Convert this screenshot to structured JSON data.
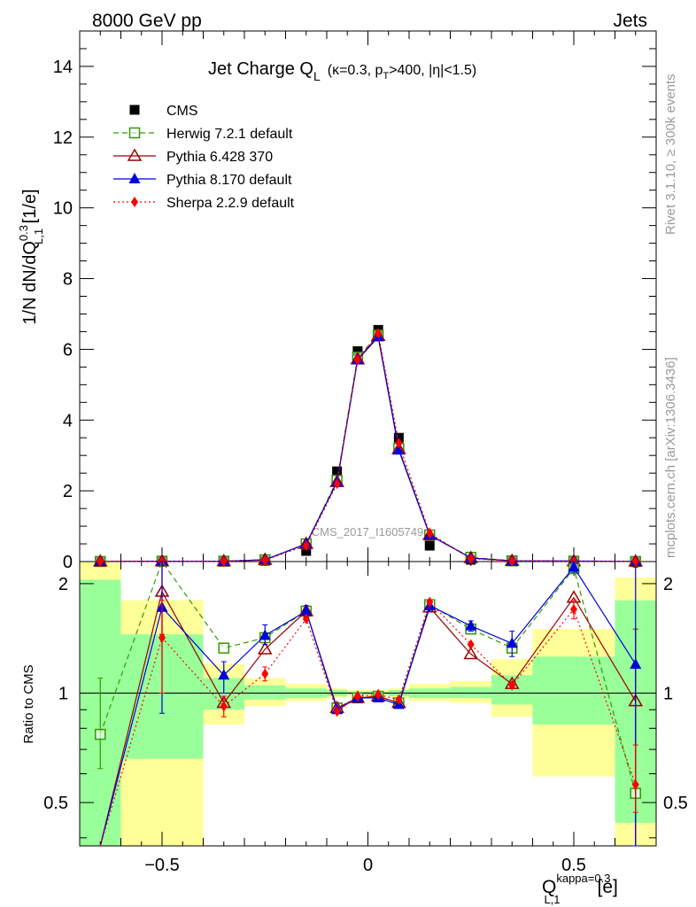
{
  "header": {
    "left": "8000 GeV pp",
    "right": "Jets"
  },
  "side_labels": {
    "rivet": "Rivet 3.1.10, ≥ 300k events",
    "mcplots": "mcplots.cern.ch [arXiv:1306.3436]"
  },
  "watermark": "CMS_2017_I1605749",
  "chart_data": {
    "type": "scatter",
    "title": {
      "main": "Jet Charge Q",
      "sub": "L",
      "cut1": "(κ=0.3, p",
      "cut_sub": "T",
      "cut2": ">400, |η|<1.5)"
    },
    "ylabel_main": {
      "pre": "1/N dN/dQ",
      "sup": "0.3",
      "sub": "L,1",
      "unit": " [1/e]"
    },
    "ylabel_ratio": "Ratio to CMS",
    "xlabel": {
      "main": "Q",
      "sup": "kappa=0.3",
      "sub": "L,1",
      "unit": "[e]"
    },
    "xlim": [
      -0.7,
      0.7
    ],
    "ylim_main": [
      0,
      15
    ],
    "ylim_ratio": [
      0.38,
      2.3
    ],
    "x_ticks": [
      {
        "v": -0.5,
        "label": "−0.5"
      },
      {
        "v": 0,
        "label": "0"
      },
      {
        "v": 0.5,
        "label": "0.5"
      }
    ],
    "y_ticks_main": [
      {
        "v": 0,
        "label": "0"
      },
      {
        "v": 2,
        "label": "2"
      },
      {
        "v": 4,
        "label": "4"
      },
      {
        "v": 6,
        "label": "6"
      },
      {
        "v": 8,
        "label": "8"
      },
      {
        "v": 10,
        "label": "10"
      },
      {
        "v": 12,
        "label": "12"
      },
      {
        "v": 14,
        "label": "14"
      }
    ],
    "y_ticks_ratio": [
      {
        "v": 0.5,
        "label": "0.5"
      },
      {
        "v": 1,
        "label": "1"
      },
      {
        "v": 2,
        "label": "2"
      }
    ],
    "x": [
      -0.65,
      -0.5,
      -0.35,
      -0.25,
      -0.15,
      -0.075,
      -0.025,
      0.025,
      0.075,
      0.15,
      0.25,
      0.35,
      0.5,
      0.65
    ],
    "bands": [
      {
        "x0": -0.7,
        "x1": -0.6,
        "y2lo": 0.38,
        "y2hi": 2.3,
        "y1lo": 0.38,
        "y1hi": 2.05
      },
      {
        "x0": -0.6,
        "x1": -0.4,
        "y2lo": 0.38,
        "y2hi": 1.8,
        "y1lo": 0.66,
        "y1hi": 1.45
      },
      {
        "x0": -0.4,
        "x1": -0.3,
        "y2lo": 0.82,
        "y2hi": 1.2,
        "y1lo": 0.9,
        "y1hi": 1.1
      },
      {
        "x0": -0.3,
        "x1": -0.2,
        "y2lo": 0.92,
        "y2hi": 1.1,
        "y1lo": 0.96,
        "y1hi": 1.05
      },
      {
        "x0": -0.2,
        "x1": -0.1,
        "y2lo": 0.95,
        "y2hi": 1.06,
        "y1lo": 0.97,
        "y1hi": 1.03
      },
      {
        "x0": -0.1,
        "x1": -0.05,
        "y2lo": 0.97,
        "y2hi": 1.03,
        "y1lo": 0.98,
        "y1hi": 1.02
      },
      {
        "x0": -0.05,
        "x1": 0.0,
        "y2lo": 0.98,
        "y2hi": 1.02,
        "y1lo": 0.99,
        "y1hi": 1.01
      },
      {
        "x0": 0.0,
        "x1": 0.05,
        "y2lo": 0.98,
        "y2hi": 1.02,
        "y1lo": 0.99,
        "y1hi": 1.01
      },
      {
        "x0": 0.05,
        "x1": 0.1,
        "y2lo": 0.97,
        "y2hi": 1.03,
        "y1lo": 0.98,
        "y1hi": 1.02
      },
      {
        "x0": 0.1,
        "x1": 0.2,
        "y2lo": 0.95,
        "y2hi": 1.06,
        "y1lo": 0.97,
        "y1hi": 1.03
      },
      {
        "x0": 0.2,
        "x1": 0.3,
        "y2lo": 0.94,
        "y2hi": 1.08,
        "y1lo": 0.97,
        "y1hi": 1.04
      },
      {
        "x0": 0.3,
        "x1": 0.4,
        "y2lo": 0.86,
        "y2hi": 1.24,
        "y1lo": 0.93,
        "y1hi": 1.12
      },
      {
        "x0": 0.4,
        "x1": 0.6,
        "y2lo": 0.59,
        "y2hi": 1.5,
        "y1lo": 0.82,
        "y1hi": 1.26
      },
      {
        "x0": 0.6,
        "x1": 0.7,
        "y2lo": 0.38,
        "y2hi": 2.08,
        "y1lo": 0.44,
        "y1hi": 1.8
      }
    ],
    "series": [
      {
        "name": "CMS",
        "color": "#000000",
        "marker": "square-filled",
        "dash": "",
        "values": [
          0.002,
          0.003,
          0.005,
          0.02,
          0.3,
          2.55,
          5.95,
          6.55,
          3.5,
          0.45,
          0.05,
          0.01,
          0.005,
          0.003
        ],
        "ratio": [
          1,
          1,
          1,
          1,
          1,
          1,
          1,
          1,
          1,
          1,
          1,
          1,
          1,
          1
        ]
      },
      {
        "name": "Herwig 7.2.1 default",
        "color": "#339900",
        "marker": "square-open",
        "dash": "6,4",
        "values": [
          0.002,
          0.01,
          0.01,
          0.05,
          0.5,
          2.3,
          5.78,
          6.4,
          3.2,
          0.75,
          0.12,
          0.02,
          0.012,
          0.002
        ],
        "ratio": [
          0.77,
          3.2,
          1.33,
          1.42,
          1.68,
          0.91,
          0.97,
          0.98,
          0.94,
          1.75,
          1.5,
          1.33,
          2.2,
          0.53
        ],
        "err": [
          [
            0.62,
            1.1
          ],
          null,
          null,
          null,
          null,
          null,
          null,
          null,
          null,
          null,
          null,
          null,
          null,
          null
        ]
      },
      {
        "name": "Pythia 6.428 370",
        "color": "#990000",
        "marker": "triangle-open",
        "dash": "",
        "values": [
          0.002,
          0.01,
          0.01,
          0.05,
          0.5,
          2.25,
          5.72,
          6.38,
          3.18,
          0.75,
          0.1,
          0.02,
          0.01,
          0.002
        ],
        "ratio": [
          0.3,
          1.9,
          0.94,
          1.32,
          1.68,
          0.91,
          0.97,
          0.98,
          0.94,
          1.72,
          1.28,
          1.06,
          1.83,
          0.95
        ],
        "err": [
          null,
          [
            1.45,
            2.3
          ],
          null,
          null,
          null,
          null,
          null,
          null,
          null,
          null,
          null,
          null,
          null,
          [
            0.38,
            1.5
          ]
        ]
      },
      {
        "name": "Pythia 8.170 default",
        "color": "#0000dd",
        "marker": "triangle-filled",
        "dash": "",
        "values": [
          0.002,
          0.01,
          0.01,
          0.05,
          0.5,
          2.25,
          5.7,
          6.35,
          3.15,
          0.75,
          0.1,
          0.02,
          0.015,
          0.004
        ],
        "ratio": [
          0.3,
          1.72,
          1.12,
          1.44,
          1.68,
          0.9,
          0.97,
          0.97,
          0.93,
          1.74,
          1.53,
          1.37,
          2.22,
          1.2
        ],
        "err": [
          null,
          [
            0.88,
            2.3
          ],
          [
            1.0,
            1.22
          ],
          [
            1.36,
            1.54
          ],
          [
            1.62,
            1.74
          ],
          null,
          null,
          null,
          null,
          [
            1.68,
            1.8
          ],
          [
            1.48,
            1.58
          ],
          [
            1.26,
            1.48
          ],
          [
            2.15,
            2.3
          ],
          [
            0.38,
            2.22
          ]
        ]
      },
      {
        "name": "Sherpa 2.2.9 default",
        "color": "#ff0000",
        "marker": "diamond",
        "dash": "2,3",
        "values": [
          0.002,
          0.008,
          0.01,
          0.04,
          0.45,
          2.2,
          5.7,
          6.45,
          3.35,
          0.8,
          0.08,
          0.015,
          0.01,
          0.002
        ],
        "ratio": [
          0.3,
          1.42,
          0.92,
          1.13,
          1.6,
          0.89,
          0.98,
          0.99,
          0.96,
          1.78,
          1.36,
          1.05,
          1.7,
          0.56
        ],
        "err": [
          null,
          [
            1.0,
            1.8
          ],
          [
            0.86,
            0.98
          ],
          [
            1.08,
            1.18
          ],
          null,
          null,
          null,
          null,
          null,
          null,
          null,
          null,
          [
            1.6,
            1.8
          ],
          [
            0.47,
            0.72
          ]
        ]
      }
    ]
  }
}
